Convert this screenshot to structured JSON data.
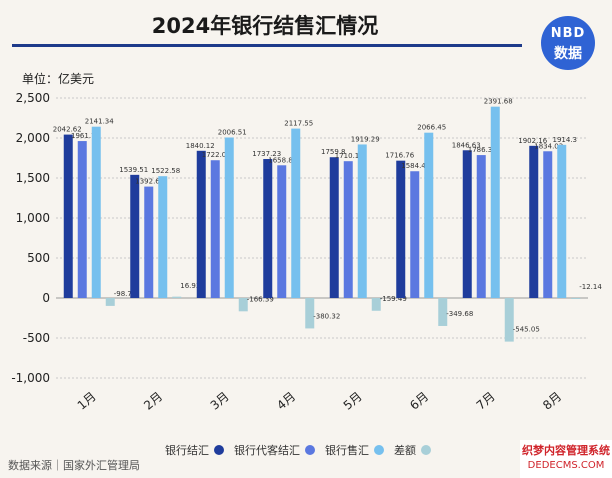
{
  "title": "2024年银行结售汇情况",
  "unit_label": "单位：亿美元",
  "logo": {
    "line1": "NBD",
    "line2": "数据"
  },
  "source": "数据来源｜国家外汇管理局",
  "watermark": {
    "line1": "织梦内容管理系统",
    "line2": "DEDECMS.COM"
  },
  "colors": {
    "title_rule": "#1e3a8a",
    "logo_bg": "#2f63d4"
  },
  "chart_data": {
    "type": "bar",
    "categories": [
      "1月",
      "2月",
      "3月",
      "4月",
      "5月",
      "6月",
      "7月",
      "8月"
    ],
    "series": [
      {
        "name": "银行结汇",
        "color": "#1f3c9c",
        "values": [
          2042.62,
          1539.51,
          1840.12,
          1737.23,
          1759.8,
          1716.76,
          1846.63,
          1902.16
        ],
        "labels": [
          "2042.62",
          "1539.51",
          "1840.12",
          "1737.23",
          "1759.8",
          "1716.76",
          "1846.63",
          "1902.16"
        ]
      },
      {
        "name": "银行代客结汇",
        "color": "#5b78e0",
        "values": [
          1961.7,
          1392.63,
          1722.07,
          1658.84,
          1710.11,
          1584.47,
          1786.39,
          1834.03
        ],
        "labels": [
          "1961.7",
          "1392.63",
          "1722.07",
          "1658.84",
          "1710.11",
          "1584.47",
          "1786.39",
          "1834.03"
        ]
      },
      {
        "name": "银行售汇",
        "color": "#76c0ee",
        "values": [
          2141.34,
          1522.58,
          2006.51,
          2117.55,
          1919.29,
          2066.45,
          2391.68,
          1914.3
        ],
        "labels": [
          "2141.34",
          "1522.58",
          "2006.51",
          "2117.55",
          "1919.29",
          "2066.45",
          "2391.68",
          "1914.3"
        ]
      },
      {
        "name": "差额",
        "color": "#a8cfd8",
        "values": [
          -98.72,
          16.93,
          -166.39,
          -380.32,
          -159.49,
          -349.68,
          -545.05,
          -12.14
        ],
        "labels": [
          "-98.72",
          "16.93",
          "-166.39",
          "-380.32",
          "-159.49",
          "-349.68",
          "-545.05",
          "-12.14"
        ]
      }
    ],
    "ylim": [
      -1000,
      2500
    ],
    "yticks": [
      -1000,
      -500,
      0,
      500,
      1000,
      1500,
      2000,
      2500
    ],
    "ytick_labels": [
      "-1,000",
      "-500",
      "0",
      "500",
      "1,000",
      "1,500",
      "2,000",
      "2,500"
    ],
    "grid": true,
    "legend_position": "bottom"
  }
}
